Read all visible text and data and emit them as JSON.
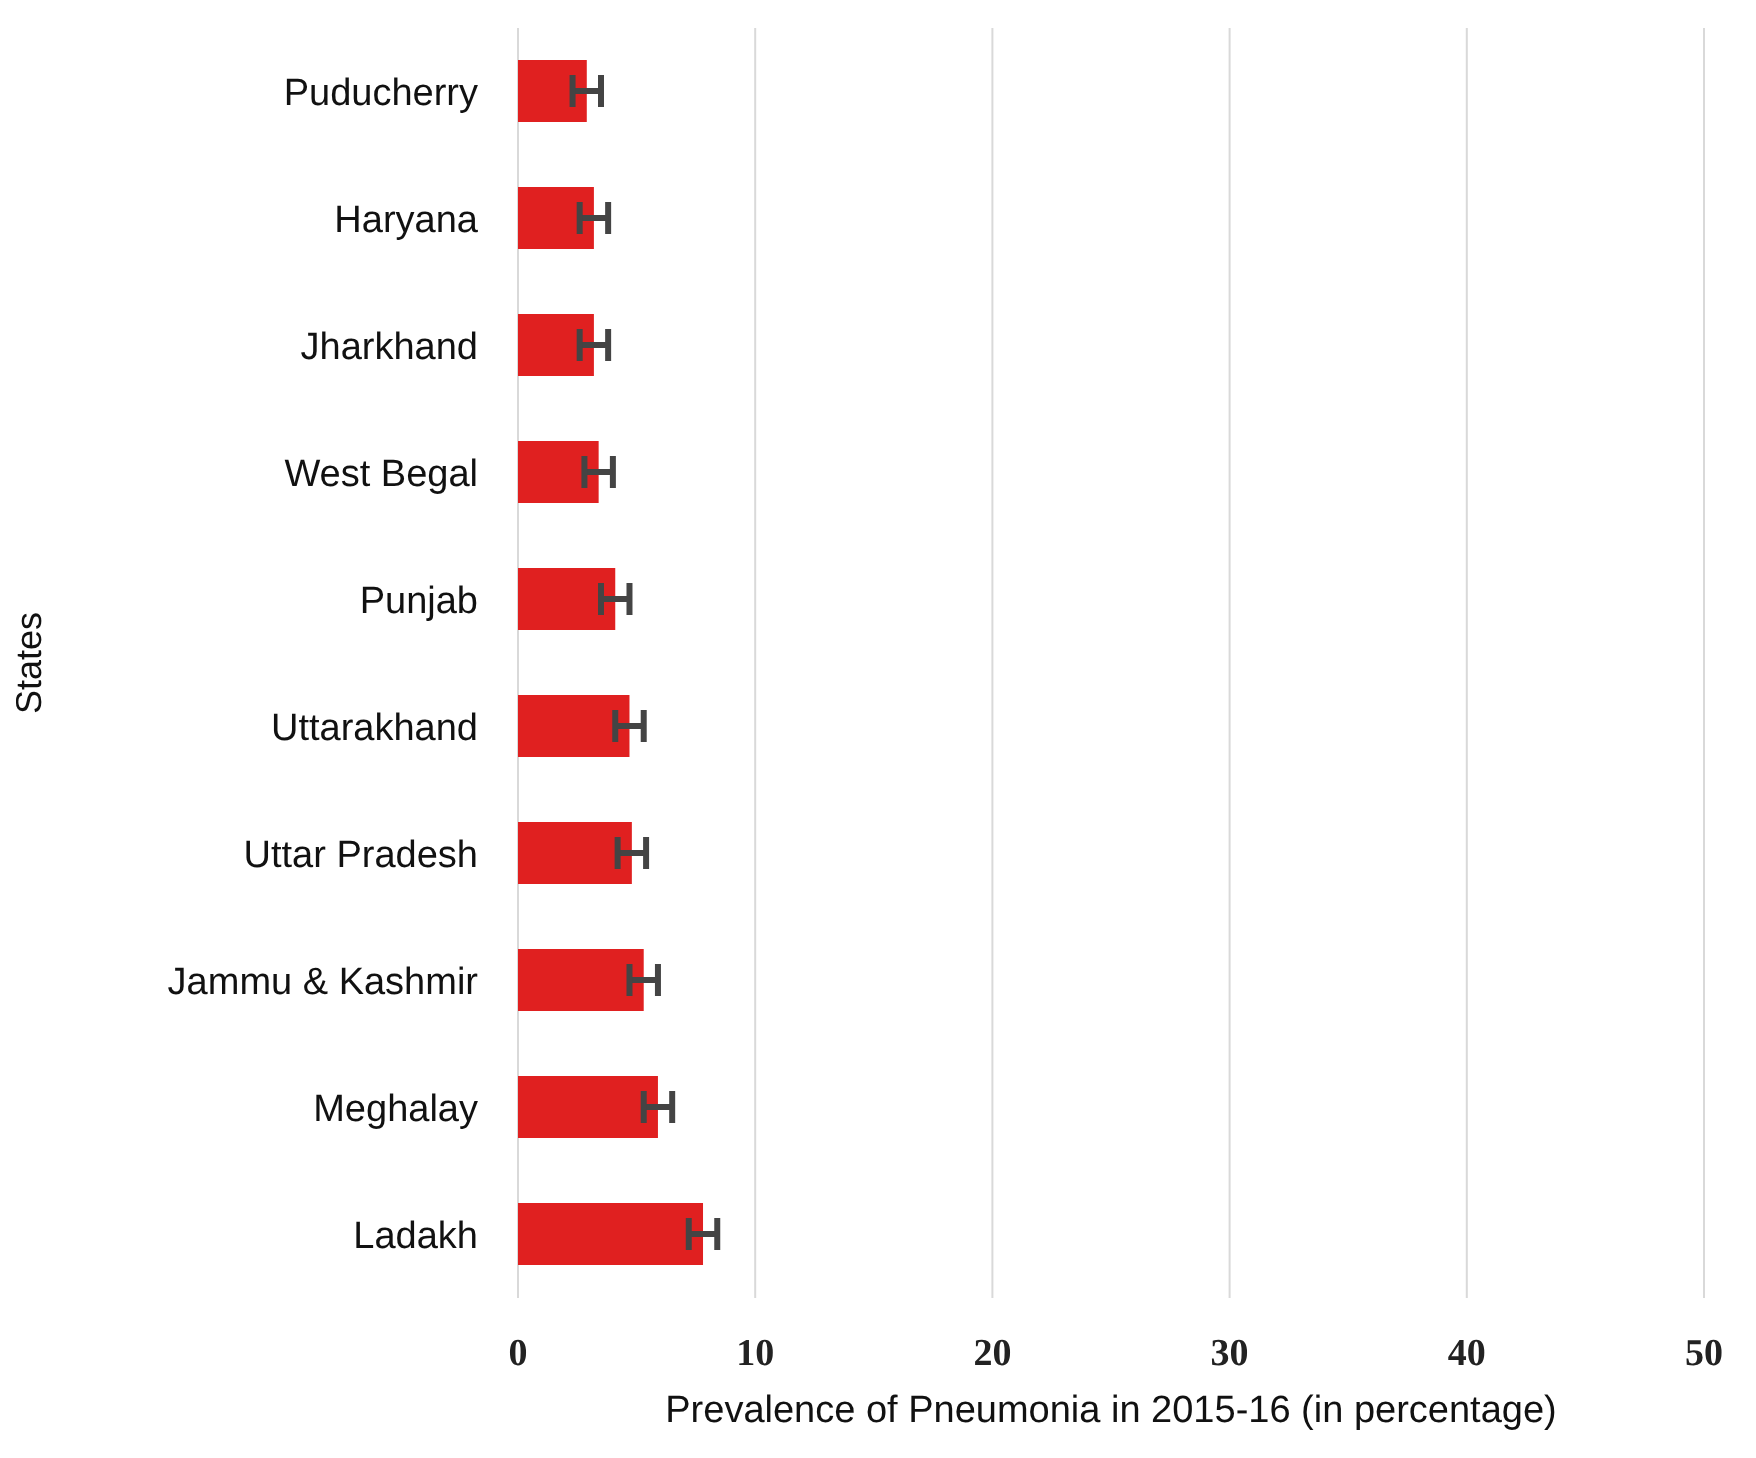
{
  "chart_data": {
    "type": "bar",
    "orientation": "horizontal",
    "xlabel": "Prevalence of Pneumonia in 2015-16 (in percentage)",
    "ylabel": "States",
    "categories": [
      "Puducherry",
      "Haryana",
      "Jharkhand",
      "West Begal",
      "Punjab",
      "Uttarakhand",
      "Uttar Pradesh",
      "Jammu & Kashmir",
      "Meghalay",
      "Ladakh"
    ],
    "values": [
      2.9,
      3.2,
      3.2,
      3.4,
      4.1,
      4.7,
      4.8,
      5.3,
      5.9,
      7.8
    ],
    "errors": [
      0.6,
      0.6,
      0.6,
      0.6,
      0.6,
      0.6,
      0.6,
      0.6,
      0.6,
      0.6
    ],
    "color": "#e02020",
    "xlim": [
      0,
      50
    ],
    "xticks": [
      0,
      10,
      20,
      30,
      40,
      50
    ],
    "grid": "x"
  }
}
